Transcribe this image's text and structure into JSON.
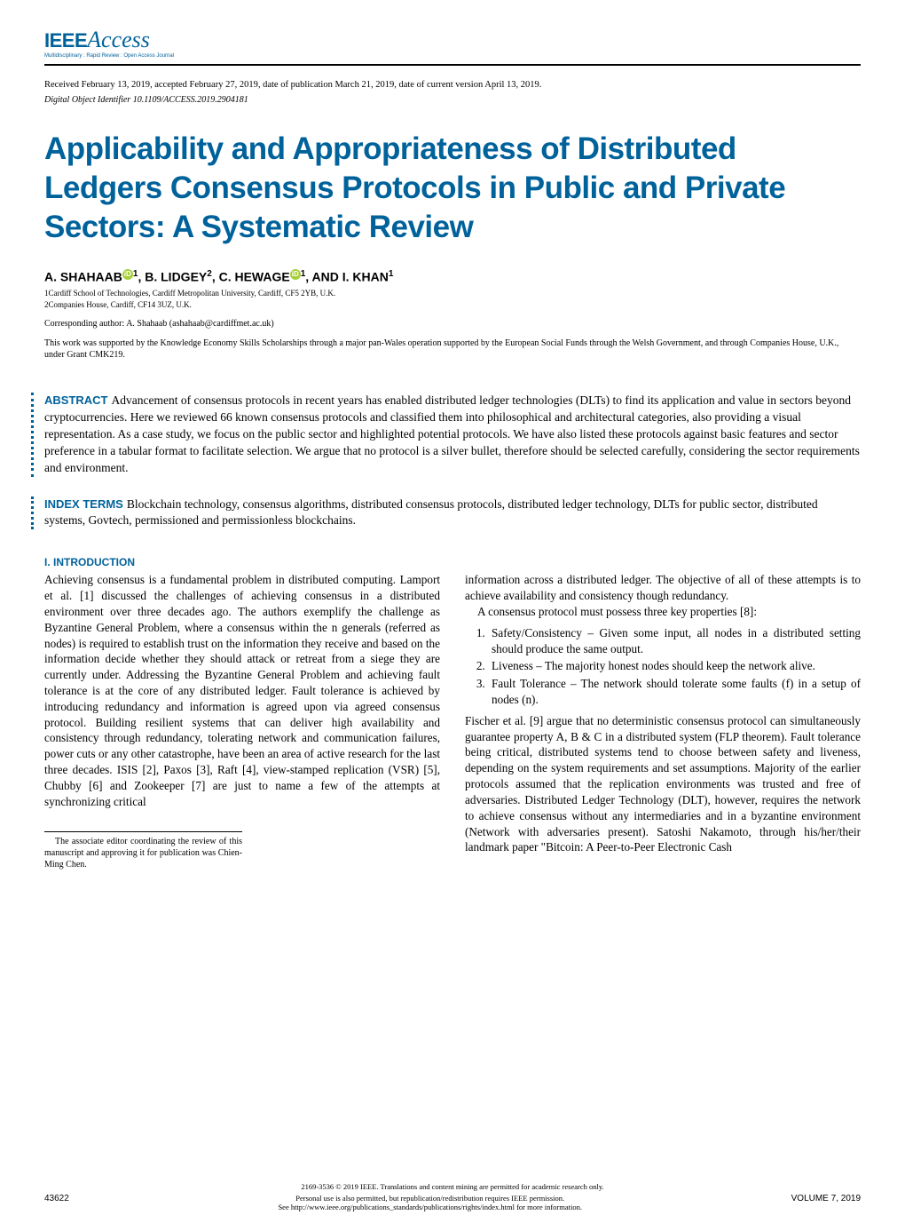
{
  "logo": {
    "brand": "IEEE",
    "product": "Access",
    "tagline": "Multidisciplinary : Rapid Review : Open Access Journal"
  },
  "meta": {
    "received": "Received February 13, 2019, accepted February 27, 2019, date of publication March 21, 2019, date of current version April 13, 2019.",
    "doi": "Digital Object Identifier 10.1109/ACCESS.2019.2904181"
  },
  "title": "Applicability and Appropriateness of Distributed Ledgers Consensus Protocols in Public and Private Sectors: A Systematic Review",
  "authors": {
    "a1_name": "A. SHAHAAB",
    "a1_affil": "1",
    "a2_name": ", B. LIDGEY",
    "a2_affil": "2",
    "a3_name": ", C. HEWAGE",
    "a3_affil": "1",
    "a4_name": ", AND I. KHAN",
    "a4_affil": "1"
  },
  "affiliations": {
    "l1": "1Cardiff School of Technologies, Cardiff Metropolitan University, Cardiff, CF5 2YB, U.K.",
    "l2": "2Companies House, Cardiff, CF14 3UZ, U.K."
  },
  "corresponding": "Corresponding author: A. Shahaab (ashahaab@cardiffmet.ac.uk)",
  "funding": "This work was supported by the Knowledge Economy Skills Scholarships through a major pan-Wales operation supported by the European Social Funds through the Welsh Government, and through Companies House, U.K., under Grant CMK219.",
  "abstract": {
    "label": "ABSTRACT",
    "text": "   Advancement of consensus protocols in recent years has enabled distributed ledger technologies (DLTs) to find its application and value in sectors beyond cryptocurrencies. Here we reviewed 66 known consensus protocols and classified them into philosophical and architectural categories, also providing a visual representation. As a case study, we focus on the public sector and highlighted potential protocols. We have also listed these protocols against basic features and sector preference in a tabular format to facilitate selection. We argue that no protocol is a silver bullet, therefore should be selected carefully, considering the sector requirements and environment."
  },
  "index": {
    "label": "INDEX TERMS",
    "text": " Blockchain technology, consensus algorithms, distributed consensus protocols, distributed ledger technology, DLTs for public sector, distributed systems, Govtech, permissioned and permissionless blockchains."
  },
  "section1_header": "I. INTRODUCTION",
  "col_left": {
    "p1": "Achieving consensus is a fundamental problem in distributed computing. Lamport et al. [1] discussed the challenges of achieving consensus in a distributed environment over three decades ago. The authors exemplify the challenge as Byzantine General Problem, where a consensus within the n generals (referred as nodes) is required to establish trust on the information they receive and based on the information decide whether they should attack or retreat from a siege they are currently under. Addressing the Byzantine General Problem and achieving fault tolerance is at the core of any distributed ledger. Fault tolerance is achieved by introducing redundancy and information is agreed upon via agreed consensus protocol. Building resilient systems that can deliver high availability and consistency through redundancy, tolerating network and communication failures, power cuts or any other catastrophe, have been an area of active research for the last three decades. ISIS [2], Paxos [3], Raft [4], view-stamped replication (VSR) [5], Chubby [6] and Zookeeper [7] are just to name a few of the attempts at synchronizing critical"
  },
  "col_right": {
    "p1": "information across a distributed ledger. The objective of all of these attempts is to achieve availability and consistency though redundancy.",
    "p2": "A consensus protocol must possess three key properties [8]:",
    "li1": "Safety/Consistency – Given some input, all nodes in a distributed setting should produce the same output.",
    "li2": "Liveness – The majority honest nodes should keep the network alive.",
    "li3": "Fault Tolerance – The network should tolerate some faults (f) in a setup of nodes (n).",
    "p3": "Fischer et al. [9] argue that no deterministic consensus protocol can simultaneously guarantee property A, B & C in a distributed system (FLP theorem). Fault tolerance being critical, distributed systems tend to choose between safety and liveness, depending on the system requirements and set assumptions. Majority of the earlier protocols assumed that the replication environments was trusted and free of adversaries. Distributed Ledger Technology (DLT), however, requires the network to achieve consensus without any intermediaries and in a byzantine environment (Network with adversaries present). Satoshi Nakamoto, through his/her/their landmark paper \"Bitcoin: A Peer-to-Peer Electronic Cash"
  },
  "editor_note": "The associate editor coordinating the review of this manuscript and approving it for publication was Chien-Ming Chen.",
  "footer": {
    "license1": "2169-3536 © 2019 IEEE. Translations and content mining are permitted for academic research only.",
    "license2": "Personal use is also permitted, but republication/redistribution requires IEEE permission.",
    "license3": "See http://www.ieee.org/publications_standards/publications/rights/index.html for more information.",
    "page": "43622",
    "volume": "VOLUME 7, 2019"
  },
  "colors": {
    "brand_blue": "#00629b",
    "orcid_green": "#a6ce39",
    "text": "#000000",
    "background": "#ffffff"
  },
  "typography": {
    "title_fontsize": 35,
    "body_fontsize": 13.2,
    "abstract_fontsize": 13.5,
    "meta_fontsize": 10
  }
}
